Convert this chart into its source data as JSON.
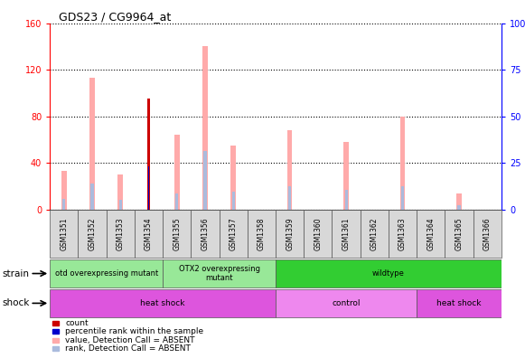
{
  "title": "GDS23 / CG9964_at",
  "samples": [
    "GSM1351",
    "GSM1352",
    "GSM1353",
    "GSM1354",
    "GSM1355",
    "GSM1356",
    "GSM1357",
    "GSM1358",
    "GSM1359",
    "GSM1360",
    "GSM1361",
    "GSM1362",
    "GSM1363",
    "GSM1364",
    "GSM1365",
    "GSM1366"
  ],
  "count_values": [
    0,
    0,
    0,
    95,
    0,
    0,
    0,
    0,
    0,
    0,
    0,
    0,
    0,
    0,
    0,
    0
  ],
  "percentile_values": [
    0,
    0,
    0,
    37,
    0,
    0,
    0,
    0,
    0,
    0,
    0,
    0,
    0,
    0,
    0,
    0
  ],
  "absent_value": [
    33,
    113,
    30,
    0,
    64,
    140,
    55,
    0,
    68,
    0,
    58,
    0,
    80,
    0,
    14,
    0
  ],
  "absent_rank": [
    9,
    22,
    8,
    0,
    14,
    50,
    15,
    0,
    20,
    0,
    17,
    0,
    20,
    0,
    4,
    0
  ],
  "blue_rank_marks": [
    8,
    22,
    7,
    0,
    14,
    48,
    14,
    0,
    20,
    3,
    16,
    1,
    19,
    0,
    3,
    0
  ],
  "ylim_left": [
    0,
    160
  ],
  "ylim_right": [
    0,
    100
  ],
  "yticks_left": [
    0,
    40,
    80,
    120,
    160
  ],
  "yticks_right": [
    0,
    25,
    50,
    75,
    100
  ],
  "strain_groups": [
    {
      "label": "otd overexpressing mutant",
      "start": 0,
      "end": 4,
      "color": "#98e898"
    },
    {
      "label": "OTX2 overexpressing\nmutant",
      "start": 4,
      "end": 8,
      "color": "#98e898"
    },
    {
      "label": "wildtype",
      "start": 8,
      "end": 16,
      "color": "#32cd32"
    }
  ],
  "shock_groups": [
    {
      "label": "heat shock",
      "start": 0,
      "end": 8,
      "color": "#dd55dd"
    },
    {
      "label": "control",
      "start": 8,
      "end": 13,
      "color": "#ee88ee"
    },
    {
      "label": "heat shock",
      "start": 13,
      "end": 16,
      "color": "#dd55dd"
    }
  ],
  "color_count": "#cc0000",
  "color_percentile": "#0000cc",
  "color_absent_value": "#ffaaaa",
  "color_absent_rank": "#aabbdd"
}
